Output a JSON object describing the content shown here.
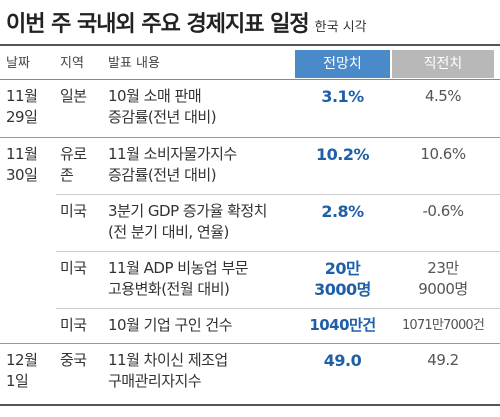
{
  "title": "이번 주 국내외 주요 경제지표 일정",
  "subtitle": "한국 시각",
  "headers": {
    "date": "날짜",
    "region": "지역",
    "content": "발표 내용",
    "forecast": "전망치",
    "previous": "직전치"
  },
  "rows": [
    {
      "date": [
        "11월",
        "29일"
      ],
      "region": [
        "일본"
      ],
      "content": [
        "10월 소매 판매",
        "증감률(전년 대비)"
      ],
      "forecast": [
        "3.1%"
      ],
      "previous": [
        "4.5%"
      ]
    },
    {
      "date": [
        "11월",
        "30일"
      ],
      "region": [
        "유로",
        "존"
      ],
      "content": [
        "11월 소비자물가지수",
        "증감률(전년 대비)"
      ],
      "forecast": [
        "10.2%"
      ],
      "previous": [
        "10.6%"
      ]
    },
    {
      "date": [],
      "region": [
        "미국"
      ],
      "content": [
        "3분기 GDP 증가율 확정치",
        "(전 분기 대비, 연율)"
      ],
      "forecast": [
        "2.8%"
      ],
      "previous": [
        "-0.6%"
      ]
    },
    {
      "date": [],
      "region": [
        "미국"
      ],
      "content": [
        "11월 ADP 비농업 부문",
        "고용변화(전월 대비)"
      ],
      "forecast": [
        "20만",
        "3000명"
      ],
      "previous": [
        "23만",
        "9000명"
      ]
    },
    {
      "date": [],
      "region": [
        "미국"
      ],
      "content": [
        "10월 기업 구인 건수"
      ],
      "forecast": [
        "1040만건"
      ],
      "previous": [
        "1071만7000건"
      ]
    },
    {
      "date": [
        "12월",
        "1일"
      ],
      "region": [
        "중국"
      ],
      "content": [
        "11월 차이신 제조업",
        "구매관리자지수"
      ],
      "forecast": [
        "49.0"
      ],
      "previous": [
        "49.2"
      ]
    }
  ]
}
